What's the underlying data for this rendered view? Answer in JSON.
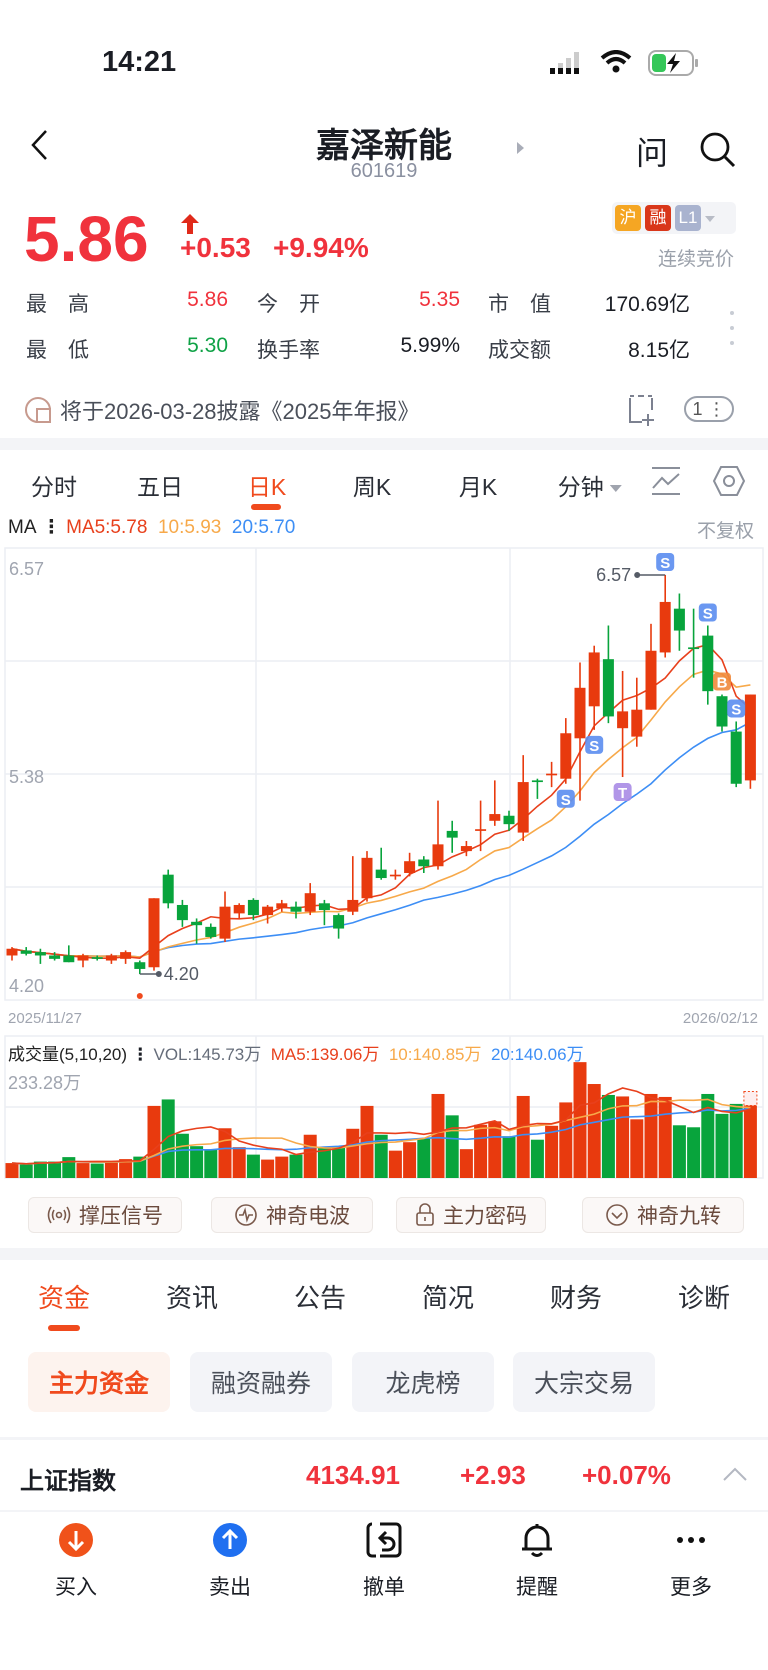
{
  "status_bar": {
    "time": "14:21",
    "battery_color": "#35c759"
  },
  "header": {
    "title": "嘉泽新能",
    "code": "601619",
    "ask_label": "问",
    "icons": [
      "back-icon",
      "search-icon"
    ]
  },
  "quote": {
    "price": "5.86",
    "change": "+0.53",
    "change_pct": "+9.94%",
    "badges": [
      "沪",
      "融",
      "L1"
    ],
    "badge_colors": [
      "#f5a623",
      "#d9371a",
      "#a9b3cf"
    ],
    "status": "连续竞价",
    "stats": [
      {
        "label": "最　高",
        "value": "5.86",
        "color": "red"
      },
      {
        "label": "今　开",
        "value": "5.35",
        "color": "red"
      },
      {
        "label": "市　值",
        "value": "170.69亿",
        "color": "black"
      },
      {
        "label": "最　低",
        "value": "5.30",
        "color": "green"
      },
      {
        "label": "换手率",
        "value": "5.99%",
        "color": "black"
      },
      {
        "label": "成交额",
        "value": "8.15亿",
        "color": "black"
      }
    ]
  },
  "notice": {
    "text": "将于2026-03-28披露《2025年年报》",
    "count": "1"
  },
  "chart_tabs": {
    "items": [
      "分时",
      "五日",
      "日K",
      "周K",
      "月K",
      "分钟"
    ],
    "active": 2
  },
  "ma_legend": {
    "prefix": "MA",
    "ma5": "MA5:5.78",
    "ma10": "10:5.93",
    "ma20": "20:5.70",
    "adjust": "不复权"
  },
  "colors": {
    "up": "#e83a0e",
    "down": "#08a43c",
    "ma5": "#e8401c",
    "ma10": "#f7a94a",
    "ma20": "#3d8ef5",
    "accent": "#f04a1d",
    "signal_s": "#5b8def",
    "signal_b": "#f08a3c",
    "signal_t": "#a98be6"
  },
  "chart_data": {
    "type": "candlestick",
    "y_ticks": [
      "6.57",
      "5.38",
      "4.20"
    ],
    "ylim": [
      4.2,
      6.57
    ],
    "x_start_label": "2025/11/27",
    "x_end_label": "2026/02/12",
    "high_label": "6.57",
    "low_label": "4.20",
    "candles": [
      [
        4.31,
        4.36,
        4.28,
        4.35
      ],
      [
        4.34,
        4.36,
        4.31,
        4.32
      ],
      [
        4.33,
        4.35,
        4.26,
        4.31
      ],
      [
        4.31,
        4.33,
        4.28,
        4.29
      ],
      [
        4.31,
        4.37,
        4.27,
        4.27
      ],
      [
        4.28,
        4.32,
        4.24,
        4.31
      ],
      [
        4.3,
        4.31,
        4.28,
        4.29
      ],
      [
        4.28,
        4.32,
        4.26,
        4.31
      ],
      [
        4.29,
        4.34,
        4.26,
        4.33
      ],
      [
        4.27,
        4.28,
        4.2,
        4.23
      ],
      [
        4.24,
        4.65,
        4.22,
        4.65
      ],
      [
        4.79,
        4.82,
        4.59,
        4.62
      ],
      [
        4.61,
        4.64,
        4.48,
        4.52
      ],
      [
        4.51,
        4.53,
        4.38,
        4.49
      ],
      [
        4.48,
        4.5,
        4.41,
        4.42
      ],
      [
        4.41,
        4.69,
        4.39,
        4.6
      ],
      [
        4.56,
        4.62,
        4.53,
        4.61
      ],
      [
        4.64,
        4.65,
        4.52,
        4.55
      ],
      [
        4.55,
        4.61,
        4.5,
        4.6
      ],
      [
        4.59,
        4.64,
        4.57,
        4.62
      ],
      [
        4.6,
        4.63,
        4.53,
        4.57
      ],
      [
        4.57,
        4.74,
        4.55,
        4.68
      ],
      [
        4.62,
        4.64,
        4.49,
        4.58
      ],
      [
        4.55,
        4.56,
        4.41,
        4.47
      ],
      [
        4.57,
        4.9,
        4.55,
        4.64
      ],
      [
        4.65,
        4.93,
        4.63,
        4.89
      ],
      [
        4.82,
        4.95,
        4.76,
        4.77
      ],
      [
        4.78,
        4.82,
        4.76,
        4.79
      ],
      [
        4.8,
        4.92,
        4.78,
        4.87
      ],
      [
        4.88,
        4.9,
        4.8,
        4.84
      ],
      [
        4.84,
        5.23,
        4.82,
        4.97
      ],
      [
        5.05,
        5.11,
        4.92,
        5.01
      ],
      [
        4.93,
        4.99,
        4.9,
        4.96
      ],
      [
        5.05,
        5.23,
        4.93,
        5.06
      ],
      [
        5.11,
        5.35,
        5.08,
        5.15
      ],
      [
        5.14,
        5.17,
        5.05,
        5.09
      ],
      [
        5.04,
        5.5,
        4.99,
        5.34
      ],
      [
        5.35,
        5.36,
        5.24,
        5.34
      ],
      [
        5.38,
        5.46,
        5.31,
        5.39
      ],
      [
        5.36,
        5.72,
        5.33,
        5.63
      ],
      [
        5.6,
        6.05,
        5.23,
        5.9
      ],
      [
        5.79,
        6.15,
        5.65,
        6.11
      ],
      [
        6.07,
        6.27,
        5.69,
        5.73
      ],
      [
        5.66,
        6.0,
        5.37,
        5.76
      ],
      [
        5.61,
        5.96,
        5.55,
        5.77
      ],
      [
        5.77,
        6.28,
        5.77,
        6.12
      ],
      [
        6.11,
        6.57,
        6.08,
        6.41
      ],
      [
        6.37,
        6.46,
        6.12,
        6.24
      ],
      [
        6.14,
        6.37,
        5.96,
        6.13
      ],
      [
        6.21,
        6.27,
        5.8,
        5.88
      ],
      [
        5.85,
        5.86,
        5.64,
        5.67
      ],
      [
        5.64,
        5.7,
        5.31,
        5.33
      ],
      [
        5.35,
        5.86,
        5.3,
        5.86
      ]
    ],
    "signals": [
      {
        "index": 39,
        "label": "S",
        "kind": "s",
        "pos": "below"
      },
      {
        "index": 41,
        "label": "S",
        "kind": "s",
        "pos": "below"
      },
      {
        "index": 43,
        "label": "T",
        "kind": "t",
        "pos": "below"
      },
      {
        "index": 46,
        "label": "S",
        "kind": "s",
        "pos": "above"
      },
      {
        "index": 49,
        "label": "S",
        "kind": "s",
        "pos": "above"
      },
      {
        "index": 50,
        "label": "B",
        "kind": "b",
        "pos": "above"
      },
      {
        "index": 51,
        "label": "S",
        "kind": "s",
        "pos": "above"
      }
    ],
    "volume": {
      "title": "成交量(5,10,20)",
      "vol": "VOL:145.73万",
      "ma5": "MA5:139.06万",
      "ma10": "10:140.85万",
      "ma20": "20:140.06万",
      "max_label": "233.28万",
      "max": 233.28,
      "values": [
        30,
        27,
        33,
        33,
        42,
        30,
        29,
        33,
        38,
        43,
        145,
        158,
        89,
        64,
        57,
        100,
        62,
        47,
        37,
        43,
        47,
        87,
        60,
        62,
        99,
        145,
        87,
        55,
        72,
        80,
        169,
        126,
        58,
        107,
        114,
        84,
        165,
        77,
        105,
        152,
        233,
        189,
        167,
        164,
        118,
        169,
        163,
        106,
        102,
        169,
        129,
        149,
        145.73
      ]
    }
  },
  "features": [
    {
      "label": "撑压信号",
      "icon": "signal-icon"
    },
    {
      "label": "神奇电波",
      "icon": "wave-icon"
    },
    {
      "label": "主力密码",
      "icon": "lock-icon"
    },
    {
      "label": "神奇九转",
      "icon": "chevron-circle-icon"
    }
  ],
  "info_tabs": {
    "items": [
      "资金",
      "资讯",
      "公告",
      "简况",
      "财务",
      "诊断"
    ],
    "active": 0
  },
  "sub_tabs": {
    "items": [
      "主力资金",
      "融资融券",
      "龙虎榜",
      "大宗交易"
    ],
    "active": 0
  },
  "index_bar": {
    "name": "上证指数",
    "value": "4134.91",
    "change": "+2.93",
    "change_pct": "+0.07%"
  },
  "bottom_nav": [
    {
      "label": "买入",
      "icon": "buy-icon"
    },
    {
      "label": "卖出",
      "icon": "sell-icon"
    },
    {
      "label": "撤单",
      "icon": "cancel-order-icon"
    },
    {
      "label": "提醒",
      "icon": "bell-icon"
    },
    {
      "label": "更多",
      "icon": "more-icon"
    }
  ]
}
